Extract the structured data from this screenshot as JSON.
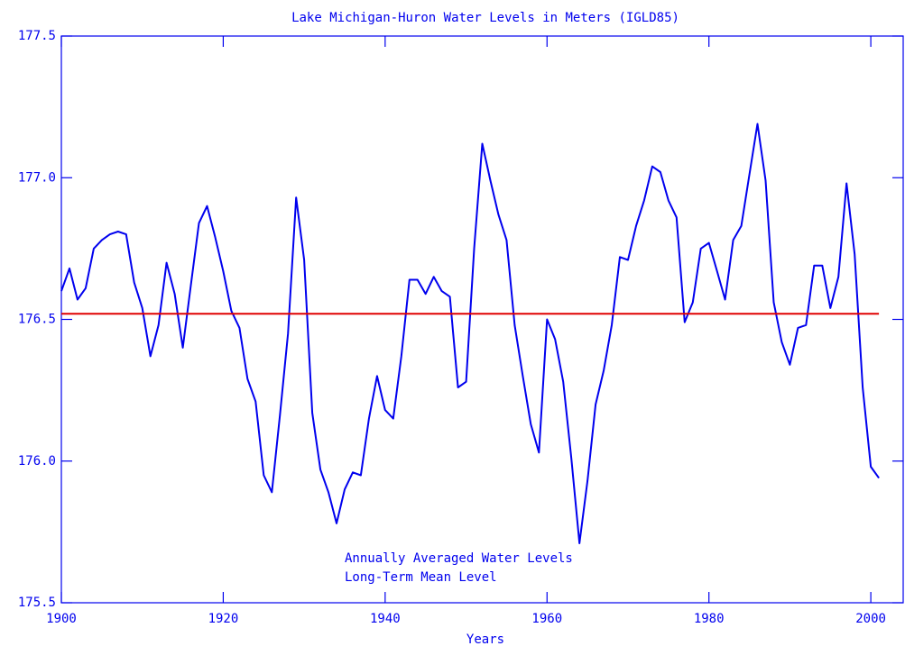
{
  "chart_data": {
    "type": "line",
    "title": "Lake Michigan-Huron Water Levels in Meters (IGLD85)",
    "xlabel": "Years",
    "xlim": [
      1900,
      2004
    ],
    "xticks": [
      1900,
      1920,
      1940,
      1960,
      1980,
      2000
    ],
    "ylim": [
      175.5,
      177.5
    ],
    "yticks": [
      175.5,
      {
        "value": 176,
        "label": "176.0"
      },
      176.5,
      {
        "value": 177,
        "label": "177.0"
      },
      177.5
    ],
    "grid": false,
    "legend": "bottom",
    "series": [
      {
        "name": "Annually Averaged Water Levels",
        "color": "#0000ee",
        "x": [
          1900,
          1901,
          1902,
          1903,
          1904,
          1905,
          1906,
          1907,
          1908,
          1909,
          1910,
          1911,
          1912,
          1913,
          1914,
          1915,
          1916,
          1917,
          1918,
          1919,
          1920,
          1921,
          1922,
          1923,
          1924,
          1925,
          1926,
          1927,
          1928,
          1929,
          1930,
          1931,
          1932,
          1933,
          1934,
          1935,
          1936,
          1937,
          1938,
          1939,
          1940,
          1941,
          1942,
          1943,
          1944,
          1945,
          1946,
          1947,
          1948,
          1949,
          1950,
          1951,
          1952,
          1953,
          1954,
          1955,
          1956,
          1957,
          1958,
          1959,
          1960,
          1961,
          1962,
          1963,
          1964,
          1965,
          1966,
          1967,
          1968,
          1969,
          1970,
          1971,
          1972,
          1973,
          1974,
          1975,
          1976,
          1977,
          1978,
          1979,
          1980,
          1981,
          1982,
          1983,
          1984,
          1985,
          1986,
          1987,
          1988,
          1989,
          1990,
          1991,
          1992,
          1993,
          1994,
          1995,
          1996,
          1997,
          1998,
          1999,
          2000,
          2001
        ],
        "values": [
          176.6,
          176.68,
          176.57,
          176.61,
          176.75,
          176.78,
          176.8,
          176.81,
          176.8,
          176.63,
          176.54,
          176.37,
          176.48,
          176.7,
          176.59,
          176.4,
          176.62,
          176.84,
          176.9,
          176.79,
          176.67,
          176.53,
          176.47,
          176.29,
          176.21,
          175.95,
          175.89,
          176.16,
          176.45,
          176.93,
          176.71,
          176.17,
          175.97,
          175.89,
          175.78,
          175.9,
          175.96,
          175.95,
          176.15,
          176.3,
          176.18,
          176.15,
          176.37,
          176.64,
          176.64,
          176.59,
          176.65,
          176.6,
          176.58,
          176.26,
          176.28,
          176.75,
          177.12,
          176.99,
          176.87,
          176.78,
          176.48,
          176.3,
          176.13,
          176.03,
          176.5,
          176.43,
          176.28,
          176.01,
          175.71,
          175.93,
          176.2,
          176.32,
          176.48,
          176.72,
          176.71,
          176.83,
          176.92,
          177.04,
          177.02,
          176.92,
          176.86,
          176.49,
          176.56,
          176.75,
          176.77,
          176.67,
          176.57,
          176.78,
          176.83,
          177.01,
          177.19,
          176.99,
          176.56,
          176.42,
          176.34,
          176.47,
          176.48,
          176.69,
          176.69,
          176.54,
          176.65,
          176.98,
          176.73,
          176.26,
          175.98,
          175.94
        ]
      },
      {
        "name": "Long-Term Mean Level",
        "color": "#e00000",
        "x": [
          1900,
          2001
        ],
        "values": [
          176.52,
          176.52
        ]
      }
    ]
  }
}
